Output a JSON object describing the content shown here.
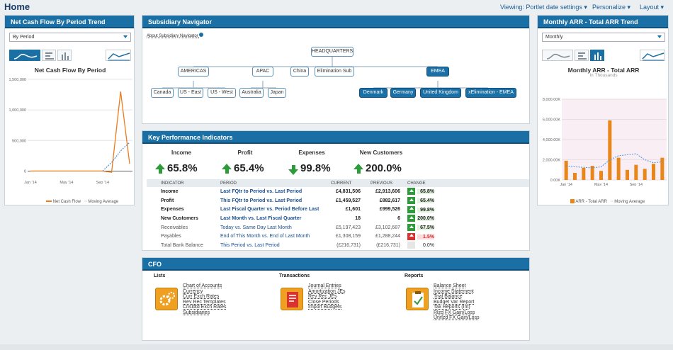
{
  "page": {
    "title": "Home"
  },
  "top_menu": {
    "viewing": "Viewing: Portlet date settings",
    "personalize": "Personalize",
    "layout": "Layout"
  },
  "ncf": {
    "title": "Net Cash Flow By Period Trend",
    "select_value": "By Period",
    "chart_title": "Net Cash Flow By Period",
    "legend": [
      "Net Cash Flow",
      "Moving Average"
    ],
    "colors": {
      "line": "#f07a1a",
      "avg": "#4a90d9"
    }
  },
  "nav": {
    "title": "Subsidiary Navigator",
    "about_link": "About Subsidiary Navigator",
    "nodes": {
      "hq": "HEADQUARTERS",
      "americas": "AMERICAS",
      "apac": "APAC",
      "china": "China",
      "elim": "Elimination Sub",
      "emea": "EMEA",
      "canada": "Canada",
      "useast": "US - East",
      "uswest": "US - West",
      "australia": "Australia",
      "japan": "Japan",
      "denmark": "Denmark",
      "germany": "Germany",
      "uk": "United Kingdom",
      "xelim": "xElimination - EMEA"
    }
  },
  "kpi": {
    "title": "Key Performance Indicators",
    "headline": [
      {
        "label": "Income",
        "value": "65.8%",
        "dir": "up"
      },
      {
        "label": "Profit",
        "value": "65.4%",
        "dir": "up"
      },
      {
        "label": "Expenses",
        "value": "99.8%",
        "dir": "down"
      },
      {
        "label": "New Customers",
        "value": "200.0%",
        "dir": "up"
      }
    ],
    "columns": [
      "INDICATOR",
      "PERIOD",
      "CURRENT",
      "PREVIOUS",
      "CHANGE"
    ],
    "rows": [
      {
        "indicator": "Income",
        "period": "Last FQtr to Period vs. Last Period",
        "current": "£4,831,506",
        "previous": "£2,913,606",
        "change": "65.8%",
        "status": "up",
        "bold": true
      },
      {
        "indicator": "Profit",
        "period": "This FQtr to Period vs. Last Period",
        "current": "£1,459,527",
        "previous": "£882,617",
        "change": "65.4%",
        "status": "up",
        "bold": true
      },
      {
        "indicator": "Expenses",
        "period": "Last Fiscal Quarter vs. Period Before Last",
        "current": "£1,601",
        "previous": "£999,526",
        "change": "99.8%",
        "status": "up",
        "bold": true
      },
      {
        "indicator": "New Customers",
        "period": "Last Month vs. Last Fiscal Quarter",
        "current": "18",
        "previous": "6",
        "change": "200.0%",
        "status": "up",
        "bold": true
      },
      {
        "indicator": "Receivables",
        "period": "Today vs. Same Day Last Month",
        "current": "£5,197,423",
        "previous": "£3,102,687",
        "change": "67.5%",
        "status": "up",
        "bold": false
      },
      {
        "indicator": "Payables",
        "period": "End of This Month vs. End of Last Month",
        "current": "£1,308,159",
        "previous": "£1,288,244",
        "change": "1.5%",
        "status": "down",
        "bold": false
      },
      {
        "indicator": "Total Bank Balance",
        "period": "This Period vs. Last Period",
        "current": "(£216,731)",
        "previous": "(£216,731)",
        "change": "0.0%",
        "status": "none",
        "bold": false
      }
    ]
  },
  "cfo": {
    "title": "CFO",
    "sections": [
      {
        "heading": "Lists",
        "icon": "gears-icon",
        "links": [
          "Chart of Accounts",
          "Currency",
          "Curr Exch Rates",
          "Rev Rec Templates",
          "Cnsldtd Exch Rates",
          "Subsidiaries"
        ]
      },
      {
        "heading": "Transactions",
        "icon": "document-icon",
        "links": [
          "Journal Entries",
          "Amortization JEs",
          "Rev Rec JEs",
          "Close Periods",
          "Import Budgets"
        ]
      },
      {
        "heading": "Reports",
        "icon": "clipboard-icon",
        "links": [
          "Balance Sheet",
          "Income Statement",
          "Trial Balance",
          "Budget Var Report",
          "Tax Reports (Int)",
          "Rlzd FX Gain/Loss",
          "Unrlzd FX Gain/Loss"
        ]
      }
    ]
  },
  "arr": {
    "title": "Monthly ARR - Total ARR Trend",
    "select_value": "Monthly",
    "legend": [
      "ARR - Total ARR",
      "Moving Average"
    ]
  },
  "chart_data": [
    {
      "type": "line",
      "title": "Net Cash Flow By Period",
      "x": [
        "Jan '14",
        "Feb '14",
        "Mar '14",
        "Apr '14",
        "May '14",
        "Jun '14",
        "Jul '14",
        "Aug '14",
        "Sep '14",
        "Oct '14",
        "Nov '14",
        "Dec '14"
      ],
      "xtick_labels": [
        "Jan '14",
        "May '14",
        "Sep '14"
      ],
      "series": [
        {
          "name": "Net Cash Flow",
          "values": [
            0,
            0,
            0,
            0,
            0,
            0,
            0,
            0,
            0,
            -20000,
            1300000,
            120000
          ]
        },
        {
          "name": "Moving Average",
          "values": [
            null,
            null,
            null,
            null,
            null,
            null,
            null,
            null,
            0,
            140000,
            330000,
            470000
          ]
        }
      ],
      "ylim": [
        -100000,
        1500000
      ],
      "yticks": [
        "1,500,000",
        "1,000,000",
        "500,000",
        "0"
      ],
      "grid": true,
      "legend": "bottom"
    },
    {
      "type": "bar",
      "title": "Monthly ARR - Total ARR",
      "subtitle": "In Thousands",
      "categories": [
        "Jan '14",
        "Feb '14",
        "Mar '14",
        "Apr '14",
        "May '14",
        "Jun '14",
        "Jul '14",
        "Aug '14",
        "Sep '14",
        "Oct '14",
        "Nov '14",
        "Dec '14"
      ],
      "xtick_labels": [
        "Jan '14",
        "May '14",
        "Sep '14"
      ],
      "series": [
        {
          "name": "ARR - Total ARR",
          "values": [
            1900,
            700,
            1200,
            1400,
            900,
            5900,
            2200,
            1000,
            1500,
            1100,
            1600,
            2200
          ]
        },
        {
          "name": "Moving Average",
          "values": [
            1400,
            1300,
            1250,
            1200,
            1300,
            2000,
            2400,
            2500,
            2600,
            2000,
            1700,
            1800
          ]
        }
      ],
      "ylim": [
        0,
        8000
      ],
      "yticks": [
        "8,000.00K",
        "6,000.00K",
        "4,000.00K",
        "2,000.00K",
        "0.00K"
      ],
      "grid": true,
      "legend": "bottom"
    }
  ]
}
